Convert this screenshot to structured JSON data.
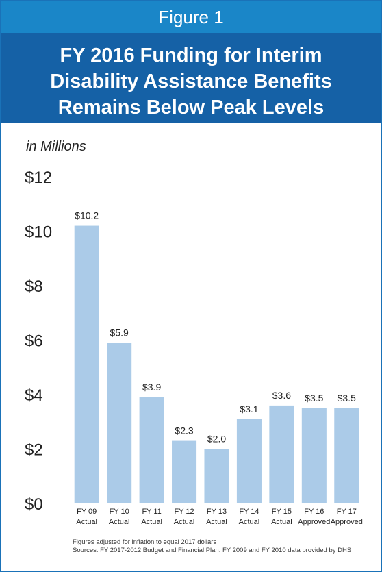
{
  "header": {
    "figure": "Figure 1",
    "title": "FY 2016 Funding for Interim Disability Assistance Benefits Remains Below Peak Levels"
  },
  "chart_data": {
    "type": "bar",
    "y_label": "in Millions",
    "categories": [
      "FY 09\nActual",
      "FY 10\nActual",
      "FY 11\nActual",
      "FY 12\nActual",
      "FY 13\nActual",
      "FY 14\nActual",
      "FY 15\nActual",
      "FY 16\nApproved",
      "FY 17\nApproved"
    ],
    "values": [
      10.2,
      5.9,
      3.9,
      2.3,
      2.0,
      3.1,
      3.6,
      3.5,
      3.5
    ],
    "value_labels": [
      "$10.2",
      "$5.9",
      "$3.9",
      "$2.3",
      "$2.0",
      "$3.1",
      "$3.6",
      "$3.5",
      "$3.5"
    ],
    "color": "#abcbe8",
    "ylim": [
      0,
      12
    ],
    "yticks": [
      {
        "value": 0,
        "label": "$0"
      },
      {
        "value": 2,
        "label": "$2"
      },
      {
        "value": 4,
        "label": "$4"
      },
      {
        "value": 6,
        "label": "$6"
      },
      {
        "value": 8,
        "label": "$8"
      },
      {
        "value": 10,
        "label": "$10"
      },
      {
        "value": 12,
        "label": "$12"
      }
    ],
    "grid": false
  },
  "notes": [
    "Figures adjusted for inflation to equal 2017 dollars",
    "Sources: FY 2017-2012 Budget and Financial Plan.  FY 2009 and FY 2010 data provided by DHS"
  ]
}
